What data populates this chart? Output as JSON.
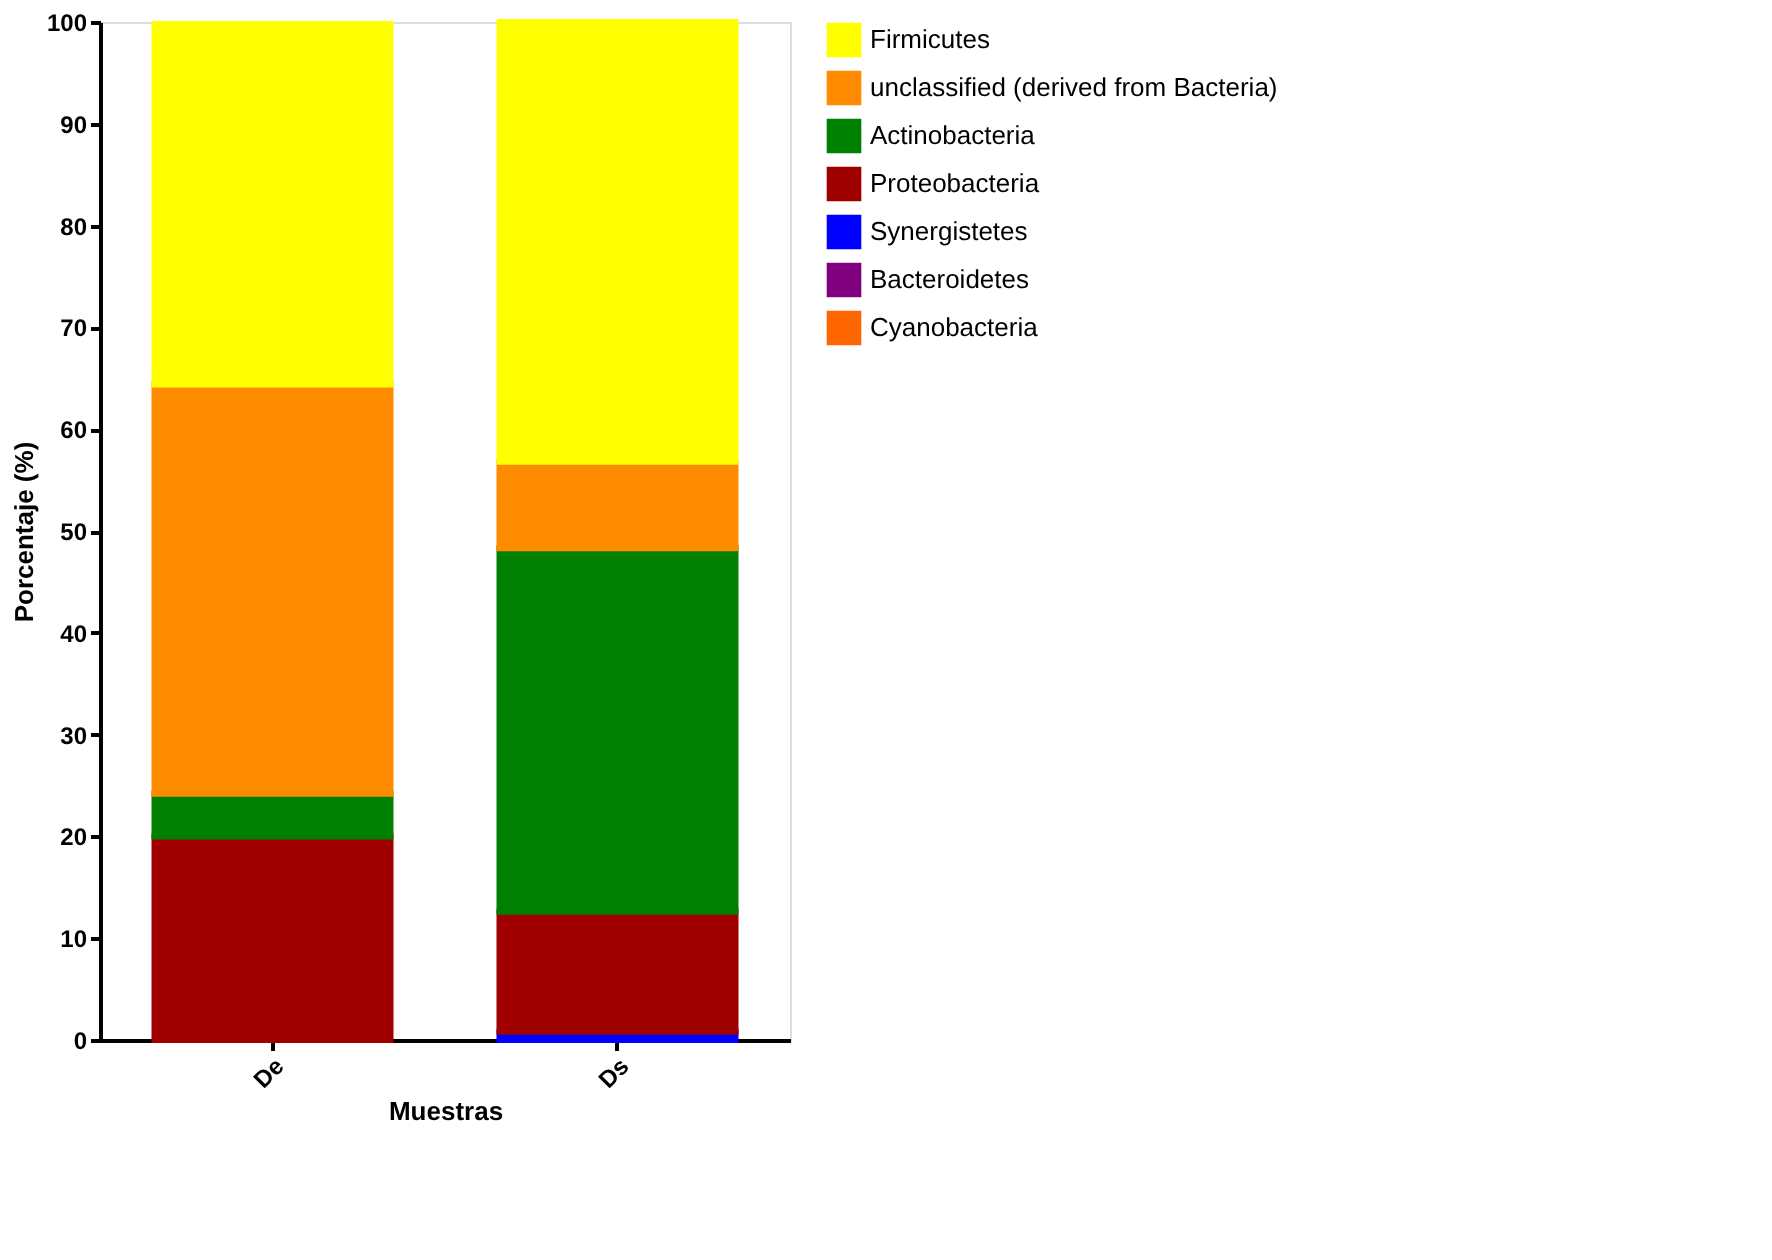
{
  "chart_data": {
    "type": "bar",
    "stacked": true,
    "xlabel": "Muestras",
    "ylabel": "Porcentaje (%)",
    "categories": [
      "De",
      "Ds"
    ],
    "series": [
      {
        "name": "Cyanobacteria",
        "color": "#ff6600",
        "values": [
          0,
          0
        ]
      },
      {
        "name": "Bacteroidetes",
        "color": "#800080",
        "values": [
          0,
          0
        ]
      },
      {
        "name": "Synergistetes",
        "color": "#0000ff",
        "values": [
          0,
          0.8
        ]
      },
      {
        "name": "Proteobacteria",
        "color": "#a00000",
        "values": [
          20.0,
          11.8
        ]
      },
      {
        "name": "Actinobacteria",
        "color": "#008000",
        "values": [
          4.2,
          35.7
        ]
      },
      {
        "name": "unclassified (derived from Bacteria)",
        "color": "#ff8c00",
        "values": [
          40.2,
          8.5
        ]
      },
      {
        "name": "Firmicutes",
        "color": "#ffff00",
        "values": [
          35.4,
          43.2
        ]
      }
    ],
    "ylim": [
      0,
      100
    ],
    "yticks": [
      0,
      10,
      20,
      30,
      40,
      50,
      60,
      70,
      80,
      90,
      100
    ],
    "grid": false,
    "legend": "right"
  }
}
